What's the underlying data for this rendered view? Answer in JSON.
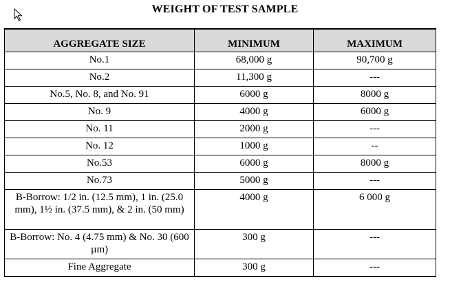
{
  "document": {
    "title": "WEIGHT OF TEST SAMPLE"
  },
  "table": {
    "headers": [
      "AGGREGATE SIZE",
      "MINIMUM",
      "MAXIMUM"
    ],
    "rows": [
      {
        "size": "No.1",
        "minimum": "68,000 g",
        "maximum": "90,700 g"
      },
      {
        "size": "No.2",
        "minimum": "11,300 g",
        "maximum": "---"
      },
      {
        "size": "No.5, No. 8, and No. 91",
        "minimum": "6000 g",
        "maximum": "8000 g"
      },
      {
        "size": "No. 9",
        "minimum": "4000 g",
        "maximum": "6000 g"
      },
      {
        "size": "No. 11",
        "minimum": "2000 g",
        "maximum": "---"
      },
      {
        "size": "No. 12",
        "minimum": "1000 g",
        "maximum": "--"
      },
      {
        "size": "No.53",
        "minimum": "6000 g",
        "maximum": "8000 g"
      },
      {
        "size": "No.73",
        "minimum": "5000 g",
        "maximum": "---"
      },
      {
        "size": "B-Borrow: 1/2 in. (12.5 mm), 1 in. (25.0 mm), 1½ in. (37.5 mm),  & 2 in. (50 mm)",
        "minimum": "4000 g",
        "maximum": "6 000 g"
      },
      {
        "size": "B-Borrow: No. 4 (4.75 mm) & No. 30 (600 µm)",
        "minimum": "300 g",
        "maximum": "---"
      },
      {
        "size": "Fine Aggregate",
        "minimum": "300 g",
        "maximum": "---"
      }
    ]
  }
}
